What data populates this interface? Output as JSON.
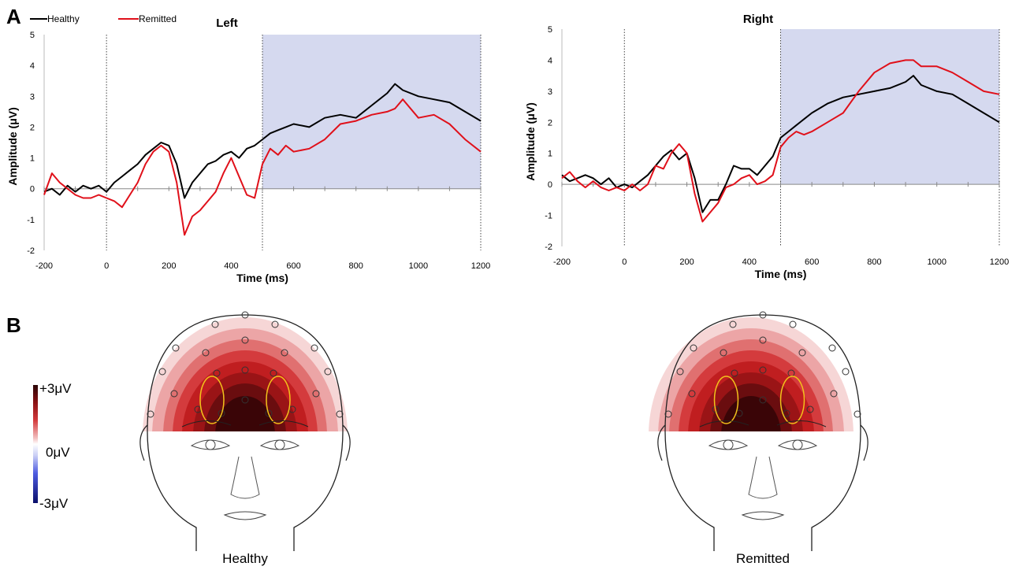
{
  "panel_labels": {
    "a": "A",
    "b": "B"
  },
  "legend": {
    "healthy": "Healthy",
    "remitted": "Remitted"
  },
  "colors": {
    "healthy": "#000000",
    "remitted": "#e0101a",
    "shade": "#d5d9ef"
  },
  "chart_data": [
    {
      "type": "line",
      "title": "Left",
      "xlabel": "Time (ms)",
      "ylabel": "Amplitude (μV)",
      "xlim": [
        -200,
        1200
      ],
      "ylim": [
        -2,
        5
      ],
      "xticks": [
        "-200",
        "0",
        "200",
        "400",
        "600",
        "800",
        "1000",
        "1200"
      ],
      "yticks": [
        "-2",
        "-1",
        "0",
        "1",
        "2",
        "3",
        "4",
        "5"
      ],
      "shaded_interval": [
        500,
        1200
      ],
      "vlines": [
        0,
        500,
        1200
      ],
      "series": [
        {
          "name": "Healthy",
          "x": [
            -200,
            -175,
            -150,
            -125,
            -100,
            -75,
            -50,
            -25,
            0,
            25,
            50,
            75,
            100,
            125,
            150,
            175,
            200,
            225,
            250,
            275,
            300,
            325,
            350,
            375,
            400,
            425,
            450,
            475,
            500,
            525,
            550,
            575,
            600,
            650,
            700,
            750,
            800,
            850,
            900,
            925,
            950,
            1000,
            1050,
            1100,
            1150,
            1200
          ],
          "values": [
            -0.1,
            0.0,
            -0.2,
            0.1,
            -0.1,
            0.1,
            0.0,
            0.1,
            -0.1,
            0.2,
            0.4,
            0.6,
            0.8,
            1.1,
            1.3,
            1.5,
            1.4,
            0.8,
            -0.3,
            0.2,
            0.5,
            0.8,
            0.9,
            1.1,
            1.2,
            1.0,
            1.3,
            1.4,
            1.6,
            1.8,
            1.9,
            2.0,
            2.1,
            2.0,
            2.3,
            2.4,
            2.3,
            2.7,
            3.1,
            3.4,
            3.2,
            3.0,
            2.9,
            2.8,
            2.5,
            2.2
          ]
        },
        {
          "name": "Remitted",
          "x": [
            -200,
            -175,
            -150,
            -125,
            -100,
            -75,
            -50,
            -25,
            0,
            25,
            50,
            75,
            100,
            125,
            150,
            175,
            200,
            225,
            250,
            275,
            300,
            325,
            350,
            375,
            400,
            425,
            450,
            475,
            500,
            525,
            550,
            575,
            600,
            650,
            700,
            750,
            800,
            850,
            900,
            925,
            950,
            1000,
            1050,
            1100,
            1150,
            1200
          ],
          "values": [
            -0.2,
            0.5,
            0.2,
            0.0,
            -0.2,
            -0.3,
            -0.3,
            -0.2,
            -0.3,
            -0.4,
            -0.6,
            -0.2,
            0.2,
            0.8,
            1.2,
            1.4,
            1.2,
            0.2,
            -1.5,
            -0.9,
            -0.7,
            -0.4,
            -0.1,
            0.5,
            1.0,
            0.4,
            -0.2,
            -0.3,
            0.8,
            1.3,
            1.1,
            1.4,
            1.2,
            1.3,
            1.6,
            2.1,
            2.2,
            2.4,
            2.5,
            2.6,
            2.9,
            2.3,
            2.4,
            2.1,
            1.6,
            1.2
          ]
        }
      ]
    },
    {
      "type": "line",
      "title": "Right",
      "xlabel": "Time (ms)",
      "ylabel": "Amplitude (μV)",
      "xlim": [
        -200,
        1200
      ],
      "ylim": [
        -2,
        5
      ],
      "xticks": [
        "-200",
        "0",
        "200",
        "400",
        "600",
        "800",
        "1000",
        "1200"
      ],
      "yticks": [
        "-2",
        "-1",
        "0",
        "1",
        "2",
        "3",
        "4",
        "5"
      ],
      "shaded_interval": [
        500,
        1200
      ],
      "vlines": [
        0,
        500,
        1200
      ],
      "series": [
        {
          "name": "Healthy",
          "x": [
            -200,
            -175,
            -150,
            -125,
            -100,
            -75,
            -50,
            -25,
            0,
            25,
            50,
            75,
            100,
            125,
            150,
            175,
            200,
            225,
            250,
            275,
            300,
            325,
            350,
            375,
            400,
            425,
            450,
            475,
            500,
            525,
            550,
            575,
            600,
            650,
            700,
            750,
            800,
            850,
            900,
            925,
            950,
            1000,
            1050,
            1100,
            1150,
            1200
          ],
          "values": [
            0.3,
            0.1,
            0.2,
            0.3,
            0.2,
            0.0,
            0.2,
            -0.1,
            0.0,
            -0.1,
            0.1,
            0.3,
            0.6,
            0.9,
            1.1,
            0.8,
            1.0,
            0.2,
            -0.9,
            -0.5,
            -0.5,
            0.0,
            0.6,
            0.5,
            0.5,
            0.3,
            0.6,
            0.9,
            1.5,
            1.7,
            1.9,
            2.1,
            2.3,
            2.6,
            2.8,
            2.9,
            3.0,
            3.1,
            3.3,
            3.5,
            3.2,
            3.0,
            2.9,
            2.6,
            2.3,
            2.0
          ]
        },
        {
          "name": "Remitted",
          "x": [
            -200,
            -175,
            -150,
            -125,
            -100,
            -75,
            -50,
            -25,
            0,
            25,
            50,
            75,
            100,
            125,
            150,
            175,
            200,
            225,
            250,
            275,
            300,
            325,
            350,
            375,
            400,
            425,
            450,
            475,
            500,
            525,
            550,
            575,
            600,
            650,
            700,
            750,
            800,
            850,
            900,
            925,
            950,
            1000,
            1050,
            1100,
            1150,
            1200
          ],
          "values": [
            0.2,
            0.4,
            0.1,
            -0.1,
            0.1,
            -0.1,
            -0.2,
            -0.1,
            -0.2,
            0.0,
            -0.2,
            0.0,
            0.6,
            0.5,
            1.0,
            1.3,
            1.0,
            -0.3,
            -1.2,
            -0.9,
            -0.6,
            -0.1,
            0.0,
            0.2,
            0.3,
            0.0,
            0.1,
            0.3,
            1.2,
            1.5,
            1.7,
            1.6,
            1.7,
            2.0,
            2.3,
            3.0,
            3.6,
            3.9,
            4.0,
            4.0,
            3.8,
            3.8,
            3.6,
            3.3,
            3.0,
            2.9
          ]
        }
      ]
    }
  ],
  "topomaps": {
    "scale_labels": {
      "pos": "+3μV",
      "zero": "0μV",
      "neg": "-3μV"
    },
    "captions": {
      "healthy": "Healthy",
      "remitted": "Remitted"
    },
    "palette": [
      "#f6d6d6",
      "#eca5a6",
      "#e07070",
      "#d43b3d",
      "#c01e20",
      "#9a1416",
      "#6a0d0f",
      "#3a0507"
    ]
  }
}
